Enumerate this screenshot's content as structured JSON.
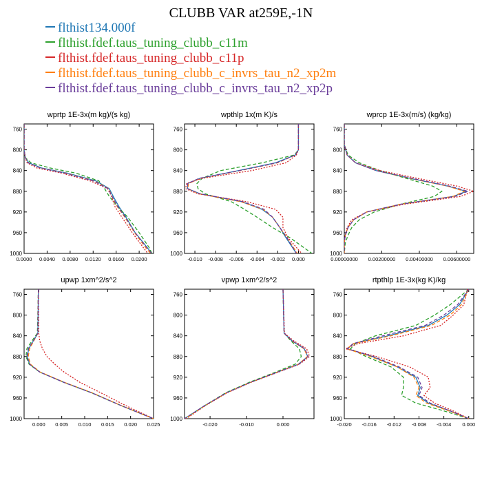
{
  "title": "CLUBB VAR at259E,-1N",
  "legend": [
    {
      "label": "flthist134.000f",
      "color": "#1f77b4"
    },
    {
      "label": "flthist.fdef.taus_tuning_clubb_c11m",
      "color": "#2ca02c"
    },
    {
      "label": "flthist.fdef.taus_tuning_clubb_c11p",
      "color": "#d62728"
    },
    {
      "label": "flthist.fdef.taus_tuning_clubb_c_invrs_tau_n2_xp2m",
      "color": "#ff7f0e"
    },
    {
      "label": "flthist.fdef.taus_tuning_clubb_c_invrs_tau_n2_xp2p",
      "color": "#6a3d9a"
    }
  ],
  "chart_data": [
    {
      "type": "line",
      "title": "wprtp  1E-3x(m kg)/(s kg)",
      "xlim": [
        0.0,
        0.0225
      ],
      "ylim": [
        1000,
        750
      ],
      "xticks": [
        0.0,
        0.004,
        0.008,
        0.012,
        0.016,
        0.02
      ],
      "xtick_labels": [
        "0.0000",
        "0.0040",
        "0.0080",
        "0.0120",
        "0.0160",
        "0.0200"
      ],
      "yticks": [
        760,
        800,
        840,
        880,
        920,
        960,
        1000
      ],
      "y": [
        750,
        800,
        815,
        825,
        835,
        845,
        860,
        875,
        890,
        910,
        930,
        960,
        990,
        1000
      ],
      "series": [
        {
          "color": "#1f77b4",
          "dash": "none",
          "x": [
            0.0,
            0.0,
            0.0002,
            0.0008,
            0.003,
            0.0075,
            0.0125,
            0.0148,
            0.0155,
            0.0165,
            0.0177,
            0.0193,
            0.0215,
            0.0222
          ]
        },
        {
          "color": "#2ca02c",
          "dash": "5,3",
          "x": [
            0.0,
            0.0,
            0.0002,
            0.0012,
            0.0045,
            0.009,
            0.013,
            0.014,
            0.0148,
            0.0163,
            0.018,
            0.02,
            0.0218,
            0.0222
          ]
        },
        {
          "color": "#d62728",
          "dash": "2,2",
          "x": [
            0.0,
            0.0,
            0.0002,
            0.0005,
            0.0022,
            0.0065,
            0.0115,
            0.0145,
            0.0152,
            0.0158,
            0.017,
            0.0188,
            0.0208,
            0.0215
          ]
        },
        {
          "color": "#ff7f0e",
          "dash": "5,3",
          "x": [
            0.0,
            0.0,
            0.0002,
            0.0007,
            0.0028,
            0.0072,
            0.0122,
            0.0147,
            0.0153,
            0.0162,
            0.0175,
            0.0192,
            0.0212,
            0.022
          ]
        },
        {
          "color": "#6a3d9a",
          "dash": "5,3",
          "x": [
            0.0,
            0.0,
            0.0002,
            0.0007,
            0.0028,
            0.007,
            0.012,
            0.0146,
            0.0153,
            0.0163,
            0.0176,
            0.0193,
            0.0214,
            0.0222
          ]
        }
      ]
    },
    {
      "type": "line",
      "title": "wpthlp  1x(m K)/s",
      "xlim": [
        -0.011,
        0.0015
      ],
      "ylim": [
        1000,
        750
      ],
      "xticks": [
        -0.01,
        -0.008,
        -0.006,
        -0.004,
        -0.002,
        0.0
      ],
      "xtick_labels": [
        "-0.010",
        "-0.008",
        "-0.006",
        "-0.004",
        "-0.002",
        "0.000"
      ],
      "yticks": [
        760,
        800,
        840,
        880,
        920,
        960,
        1000
      ],
      "y": [
        750,
        800,
        810,
        825,
        840,
        855,
        865,
        875,
        885,
        900,
        915,
        930,
        950,
        970,
        1000
      ],
      "series": [
        {
          "color": "#1f77b4",
          "dash": "none",
          "x": [
            0.0,
            0.0,
            -0.0003,
            -0.0022,
            -0.0058,
            -0.0095,
            -0.0107,
            -0.0107,
            -0.0095,
            -0.0055,
            -0.0035,
            -0.0025,
            -0.0018,
            -0.0012,
            -0.0002
          ]
        },
        {
          "color": "#2ca02c",
          "dash": "5,3",
          "x": [
            0.0,
            0.0,
            -0.0004,
            -0.0035,
            -0.0075,
            -0.0093,
            -0.0098,
            -0.0097,
            -0.009,
            -0.0065,
            -0.0052,
            -0.004,
            -0.0025,
            -0.0008,
            0.0013
          ]
        },
        {
          "color": "#d62728",
          "dash": "2,2",
          "x": [
            0.0,
            0.0,
            -0.0002,
            -0.0012,
            -0.0045,
            -0.0093,
            -0.0108,
            -0.0109,
            -0.0097,
            -0.005,
            -0.0022,
            -0.0015,
            -0.0015,
            -0.001,
            0.0003
          ]
        },
        {
          "color": "#ff7f0e",
          "dash": "5,3",
          "x": [
            0.0,
            0.0,
            -0.0003,
            -0.002,
            -0.0056,
            -0.0095,
            -0.0106,
            -0.0107,
            -0.0096,
            -0.0056,
            -0.0034,
            -0.0025,
            -0.0018,
            -0.0011,
            -0.0001
          ]
        },
        {
          "color": "#6a3d9a",
          "dash": "5,3",
          "x": [
            0.0,
            0.0,
            -0.0003,
            -0.0021,
            -0.0057,
            -0.0096,
            -0.0107,
            -0.0107,
            -0.0095,
            -0.0054,
            -0.0033,
            -0.0025,
            -0.0018,
            -0.0011,
            -0.0002
          ]
        }
      ]
    },
    {
      "type": "line",
      "title": "wprcp  1E-3x(m/s) (kg/kg)",
      "xlim": [
        0.0,
        0.0069
      ],
      "ylim": [
        1000,
        750
      ],
      "xticks": [
        0.0,
        0.002,
        0.004,
        0.006
      ],
      "xtick_labels": [
        "0.00000000",
        "0.00200000",
        "0.00400000",
        "0.00600000"
      ],
      "yticks": [
        760,
        800,
        840,
        880,
        920,
        960,
        1000
      ],
      "y": [
        750,
        790,
        810,
        825,
        840,
        855,
        870,
        880,
        890,
        905,
        920,
        935,
        950,
        965,
        980,
        1000
      ],
      "series": [
        {
          "color": "#1f77b4",
          "dash": "none",
          "x": [
            0.0,
            0.0,
            0.00015,
            0.0006,
            0.0017,
            0.0035,
            0.0055,
            0.0065,
            0.0058,
            0.003,
            0.0012,
            0.0005,
            0.0002,
            5e-05,
            0.0,
            0.0
          ]
        },
        {
          "color": "#2ca02c",
          "dash": "5,3",
          "x": [
            0.0,
            0.0,
            0.0002,
            0.0008,
            0.0019,
            0.0033,
            0.0047,
            0.0052,
            0.0048,
            0.003,
            0.0016,
            0.0008,
            0.0004,
            0.0002,
            5e-05,
            0.0
          ]
        },
        {
          "color": "#d62728",
          "dash": "2,2",
          "x": [
            0.0,
            0.0,
            0.00015,
            0.0006,
            0.0019,
            0.0039,
            0.006,
            0.0069,
            0.0062,
            0.0032,
            0.0012,
            0.0004,
            0.00015,
            5e-05,
            0.0,
            0.0
          ]
        },
        {
          "color": "#ff7f0e",
          "dash": "5,3",
          "x": [
            0.0,
            0.0,
            0.00015,
            0.0006,
            0.0017,
            0.0035,
            0.0055,
            0.0064,
            0.0058,
            0.003,
            0.0012,
            0.0005,
            0.0002,
            5e-05,
            0.0,
            0.0
          ]
        },
        {
          "color": "#6a3d9a",
          "dash": "5,3",
          "x": [
            0.0,
            0.0,
            0.00015,
            0.0006,
            0.0017,
            0.0036,
            0.0056,
            0.0066,
            0.0059,
            0.003,
            0.0012,
            0.0005,
            0.0002,
            5e-05,
            0.0,
            0.0
          ]
        }
      ]
    },
    {
      "type": "line",
      "title": "upwp  1xm^2/s^2",
      "xlim": [
        -0.0032,
        0.025
      ],
      "ylim": [
        1000,
        750
      ],
      "xticks": [
        0.0,
        0.005,
        0.01,
        0.015,
        0.02,
        0.025
      ],
      "xtick_labels": [
        "0.000",
        "0.005",
        "0.010",
        "0.015",
        "0.020",
        "0.025"
      ],
      "yticks": [
        760,
        800,
        840,
        880,
        920,
        960,
        1000
      ],
      "y": [
        750,
        835,
        850,
        865,
        880,
        895,
        910,
        930,
        950,
        975,
        1000
      ],
      "series": [
        {
          "color": "#1f77b4",
          "dash": "none",
          "x": [
            -0.0001,
            -0.0002,
            -0.0012,
            -0.0022,
            -0.0025,
            -0.002,
            0.0002,
            0.0055,
            0.0115,
            0.018,
            0.025
          ]
        },
        {
          "color": "#2ca02c",
          "dash": "5,3",
          "x": [
            -0.0001,
            -0.0003,
            -0.0015,
            -0.0026,
            -0.0028,
            -0.0021,
            0.0002,
            0.0055,
            0.0115,
            0.018,
            0.025
          ]
        },
        {
          "color": "#d62728",
          "dash": "2,2",
          "x": [
            -0.0001,
            0.0,
            0.0002,
            0.0008,
            0.0018,
            0.0035,
            0.0055,
            0.009,
            0.0135,
            0.019,
            0.025
          ]
        },
        {
          "color": "#ff7f0e",
          "dash": "5,3",
          "x": [
            -0.0001,
            -0.0002,
            -0.0011,
            -0.002,
            -0.0023,
            -0.0018,
            0.0003,
            0.0056,
            0.0116,
            0.018,
            0.025
          ]
        },
        {
          "color": "#6a3d9a",
          "dash": "5,3",
          "x": [
            -0.0001,
            -0.0002,
            -0.0012,
            -0.0023,
            -0.0026,
            -0.002,
            0.0002,
            0.0055,
            0.0115,
            0.018,
            0.025
          ]
        }
      ]
    },
    {
      "type": "line",
      "title": "vpwp  1xm^2/s^2",
      "xlim": [
        -0.027,
        0.0085
      ],
      "ylim": [
        1000,
        750
      ],
      "xticks": [
        -0.02,
        -0.01,
        0.0
      ],
      "xtick_labels": [
        "-0.020",
        "-0.010",
        "0.000"
      ],
      "yticks": [
        760,
        800,
        840,
        880,
        920,
        960,
        1000
      ],
      "y": [
        750,
        835,
        850,
        865,
        880,
        895,
        910,
        930,
        950,
        975,
        1000
      ],
      "series": [
        {
          "color": "#1f77b4",
          "dash": "none",
          "x": [
            0.0,
            0.0003,
            0.0025,
            0.0058,
            0.0068,
            0.0042,
            -0.0015,
            -0.009,
            -0.0155,
            -0.0215,
            -0.027
          ]
        },
        {
          "color": "#2ca02c",
          "dash": "5,3",
          "x": [
            0.0,
            0.0003,
            0.0022,
            0.0045,
            0.005,
            0.0033,
            -0.002,
            -0.0093,
            -0.0157,
            -0.0215,
            -0.027
          ]
        },
        {
          "color": "#d62728",
          "dash": "2,2",
          "x": [
            0.0,
            0.0004,
            0.003,
            0.0065,
            0.0073,
            0.0045,
            -0.0012,
            -0.0088,
            -0.0153,
            -0.0213,
            -0.0265
          ]
        },
        {
          "color": "#ff7f0e",
          "dash": "5,3",
          "x": [
            0.0,
            0.0003,
            0.0025,
            0.0058,
            0.0067,
            0.0042,
            -0.0015,
            -0.009,
            -0.0155,
            -0.0214,
            -0.0268
          ]
        },
        {
          "color": "#6a3d9a",
          "dash": "5,3",
          "x": [
            0.0,
            0.0003,
            0.0026,
            0.006,
            0.0069,
            0.0043,
            -0.0014,
            -0.009,
            -0.0155,
            -0.0215,
            -0.027
          ]
        }
      ]
    },
    {
      "type": "line",
      "title": "rtpthlp  1E-3x(kg K)/kg",
      "xlim": [
        -0.02,
        0.0008
      ],
      "ylim": [
        1000,
        750
      ],
      "xticks": [
        -0.02,
        -0.016,
        -0.012,
        -0.008,
        -0.004,
        0.0
      ],
      "xtick_labels": [
        "-0.020",
        "-0.016",
        "-0.012",
        "-0.008",
        "-0.004",
        "0.000"
      ],
      "yticks": [
        760,
        800,
        840,
        880,
        920,
        960,
        1000
      ],
      "y": [
        750,
        780,
        800,
        820,
        840,
        855,
        865,
        880,
        900,
        920,
        940,
        955,
        970,
        985,
        1000
      ],
      "series": [
        {
          "color": "#1f77b4",
          "dash": "none",
          "x": [
            0.0,
            -0.0015,
            -0.0035,
            -0.0065,
            -0.013,
            -0.0185,
            -0.0195,
            -0.0155,
            -0.0115,
            -0.0085,
            -0.0078,
            -0.0082,
            -0.0065,
            -0.003,
            0.0
          ]
        },
        {
          "color": "#2ca02c",
          "dash": "5,3",
          "x": [
            0.0,
            -0.003,
            -0.0055,
            -0.0085,
            -0.015,
            -0.0182,
            -0.019,
            -0.0165,
            -0.0125,
            -0.0105,
            -0.0105,
            -0.0108,
            -0.0085,
            -0.004,
            0.0
          ]
        },
        {
          "color": "#d62728",
          "dash": "2,2",
          "x": [
            -0.0002,
            -0.0008,
            -0.0025,
            -0.0045,
            -0.0105,
            -0.0178,
            -0.0198,
            -0.0148,
            -0.0095,
            -0.0065,
            -0.0062,
            -0.0072,
            -0.0055,
            -0.0025,
            0.0
          ]
        },
        {
          "color": "#ff7f0e",
          "dash": "5,3",
          "x": [
            0.0,
            -0.0012,
            -0.003,
            -0.006,
            -0.0125,
            -0.0185,
            -0.0196,
            -0.0158,
            -0.0115,
            -0.0088,
            -0.008,
            -0.0085,
            -0.0068,
            -0.0032,
            0.0
          ]
        },
        {
          "color": "#6a3d9a",
          "dash": "5,3",
          "x": [
            0.0,
            -0.0018,
            -0.004,
            -0.007,
            -0.0138,
            -0.0186,
            -0.0195,
            -0.0153,
            -0.0112,
            -0.0082,
            -0.0075,
            -0.008,
            -0.0062,
            -0.003,
            0.0
          ]
        }
      ]
    }
  ]
}
